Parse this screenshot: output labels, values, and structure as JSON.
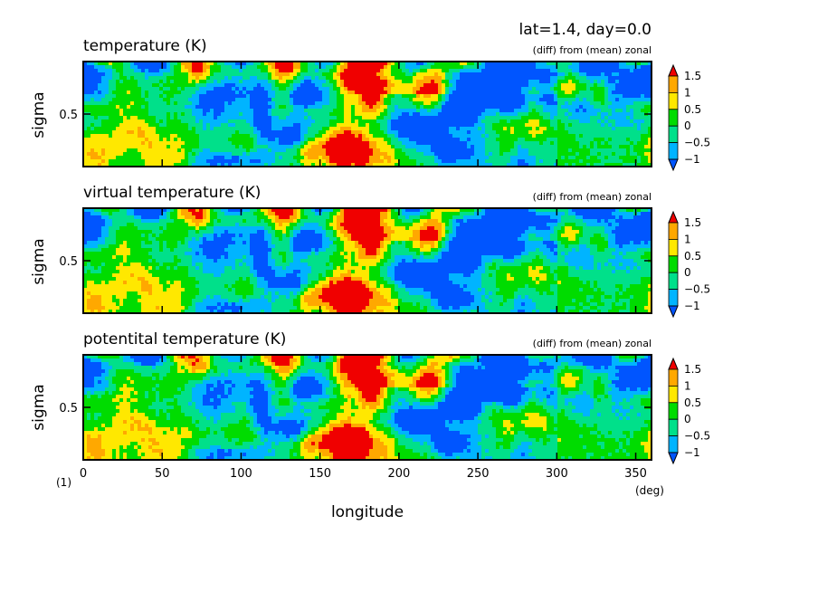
{
  "figure": {
    "title": "lat=1.4, day=0.0",
    "x_axis_label": "longitude",
    "x_unit": "(deg)",
    "figure_number": "(1)"
  },
  "colorscale": {
    "colors": [
      "#0055ff",
      "#00b4ff",
      "#00e08a",
      "#00dc00",
      "#ffe800",
      "#ffa800",
      "#f00000"
    ],
    "levels": [
      -1,
      -0.5,
      0,
      0.5,
      1,
      1.5
    ],
    "tick_labels": [
      "−1",
      "−0.5",
      "0",
      "0.5",
      "1",
      "1.5"
    ]
  },
  "chart_data": [
    {
      "type": "heatmap",
      "title": "temperature (K)",
      "subtitle": "(diff) from (mean) zonal",
      "xlabel": "longitude",
      "ylabel": "sigma",
      "xlim": [
        0,
        360
      ],
      "ylim": [
        1,
        0
      ],
      "xticks": [
        0,
        50,
        100,
        150,
        200,
        250,
        300,
        350
      ],
      "yticks": [
        0.5
      ],
      "value_range": [
        -1.2,
        1.7
      ],
      "note": "contour field of zonal anomalies, values roughly between -1 and 1.5 K"
    },
    {
      "type": "heatmap",
      "title": "virtual temperature (K)",
      "subtitle": "(diff) from (mean) zonal",
      "xlabel": "longitude",
      "ylabel": "sigma",
      "xlim": [
        0,
        360
      ],
      "ylim": [
        1,
        0
      ],
      "xticks": [
        0,
        50,
        100,
        150,
        200,
        250,
        300,
        350
      ],
      "yticks": [
        0.5
      ],
      "value_range": [
        -1.2,
        1.7
      ]
    },
    {
      "type": "heatmap",
      "title": "potentital temperature (K)",
      "subtitle": "(diff) from (mean) zonal",
      "xlabel": "longitude",
      "ylabel": "sigma",
      "xlim": [
        0,
        360
      ],
      "ylim": [
        1,
        0
      ],
      "xticks": [
        0,
        50,
        100,
        150,
        200,
        250,
        300,
        350
      ],
      "yticks": [
        0.5
      ],
      "value_range": [
        -1.2,
        1.7
      ]
    }
  ]
}
